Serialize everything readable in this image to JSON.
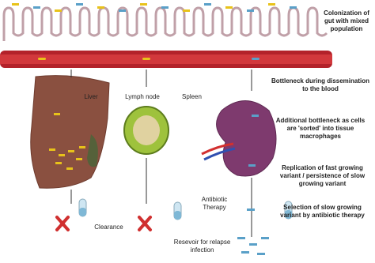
{
  "steps": [
    "Colonization of gut with mixed population",
    "Bottleneck during dissemination to the blood",
    "Additional bottleneck as cells are 'sorted' into tissue macrophages",
    "Replication of fast growing variant / persistence of slow growing variant",
    "Selection of slow growing variant by antibiotic therapy"
  ],
  "organs": [
    "Liver",
    "Lymph node",
    "Spleen"
  ],
  "labels": {
    "clearance": "Clearance",
    "antibiotic": "Antibiotic Therapy",
    "reservoir": "Resevoir for relapse infection"
  }
}
